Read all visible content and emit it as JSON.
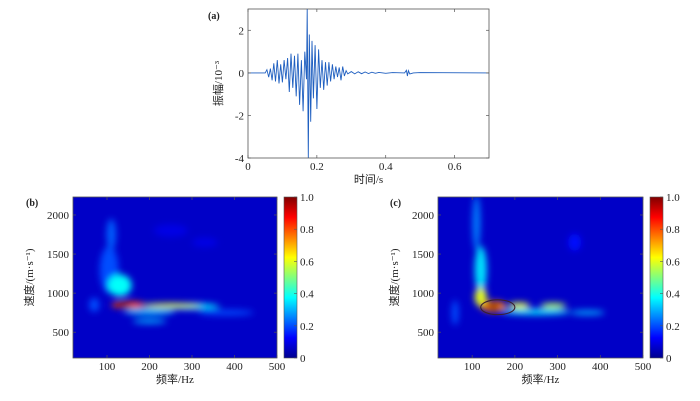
{
  "chart_data": [
    {
      "id": "a",
      "type": "line",
      "panel_label": "(a)",
      "xlabel": "时间/s",
      "ylabel": "振幅/10⁻³",
      "xlim": [
        0,
        0.7
      ],
      "ylim": [
        -4,
        3
      ],
      "xticks": [
        0,
        0.2,
        0.4,
        0.6
      ],
      "xtick_labels": [
        "0",
        "0.2",
        "0.4",
        "0.6"
      ],
      "yticks": [
        -4,
        -2,
        0,
        2
      ],
      "ytick_labels": [
        "-4",
        "-2",
        "0",
        "2"
      ],
      "color": "#1f5fc0",
      "x": [
        0,
        0.05,
        0.055,
        0.06,
        0.065,
        0.07,
        0.075,
        0.08,
        0.085,
        0.09,
        0.095,
        0.1,
        0.105,
        0.11,
        0.115,
        0.12,
        0.125,
        0.13,
        0.135,
        0.14,
        0.145,
        0.15,
        0.155,
        0.16,
        0.165,
        0.17,
        0.172,
        0.175,
        0.178,
        0.182,
        0.186,
        0.19,
        0.195,
        0.2,
        0.205,
        0.21,
        0.215,
        0.22,
        0.225,
        0.23,
        0.235,
        0.24,
        0.245,
        0.25,
        0.255,
        0.26,
        0.265,
        0.27,
        0.275,
        0.28,
        0.285,
        0.29,
        0.3,
        0.31,
        0.32,
        0.33,
        0.34,
        0.35,
        0.36,
        0.37,
        0.38,
        0.4,
        0.42,
        0.455,
        0.46,
        0.463,
        0.466,
        0.47,
        0.48,
        0.5,
        0.7
      ],
      "y": [
        0,
        0,
        0.15,
        -0.2,
        0.2,
        -0.35,
        0.45,
        -0.4,
        0.6,
        -0.5,
        0.4,
        -0.45,
        0.6,
        -0.3,
        0.7,
        -0.9,
        0.9,
        -0.7,
        0.8,
        -1.1,
        0.9,
        -1.5,
        0.6,
        -1.8,
        1.0,
        -0.3,
        3.0,
        -4.0,
        1.8,
        -2.3,
        1.5,
        -1.2,
        1.3,
        -1.7,
        1.1,
        -0.7,
        0.6,
        -0.8,
        0.5,
        -0.6,
        0.5,
        -0.4,
        0.4,
        -0.3,
        0.3,
        -0.2,
        0.25,
        -0.35,
        0.3,
        -0.15,
        0.1,
        -0.05,
        0.06,
        -0.05,
        0.05,
        -0.04,
        0.04,
        -0.03,
        0.03,
        -0.02,
        0.02,
        -0.02,
        0.01,
        0,
        0.12,
        -0.15,
        0.1,
        -0.05,
        0,
        0.01,
        0
      ]
    },
    {
      "id": "b",
      "type": "heatmap",
      "panel_label": "(b)",
      "xlabel": "频率/Hz",
      "ylabel": "速度/(m·s⁻¹)",
      "xlim": [
        20,
        500
      ],
      "ylim": [
        170,
        2230
      ],
      "xticks": [
        100,
        200,
        300,
        400,
        500
      ],
      "xtick_labels": [
        "100",
        "200",
        "300",
        "400",
        "500"
      ],
      "yticks": [
        500,
        1000,
        1500,
        2000
      ],
      "ytick_labels": [
        "500",
        "1000",
        "1500",
        "2000"
      ],
      "colorbar": {
        "range": [
          0,
          1
        ],
        "ticks": [
          0,
          0.2,
          0.4,
          0.6,
          0.8,
          1.0
        ],
        "tick_labels": [
          "0",
          "0.2",
          "0.4",
          "0.6",
          "0.8",
          "1.0"
        ]
      },
      "background_value": 0.07,
      "features": [
        {
          "f": 250,
          "v": 1800,
          "wf": 40,
          "wv": 80,
          "value": 0.1
        },
        {
          "f": 330,
          "v": 1650,
          "wf": 30,
          "wv": 60,
          "value": 0.1
        },
        {
          "f": 110,
          "v": 1750,
          "wf": 11,
          "wv": 200,
          "value": 0.22
        },
        {
          "f": 105,
          "v": 1300,
          "wf": 22,
          "wv": 300,
          "value": 0.2
        },
        {
          "f": 70,
          "v": 850,
          "wf": 12,
          "wv": 90,
          "value": 0.2
        },
        {
          "f": 380,
          "v": 750,
          "wf": 65,
          "wv": 35,
          "value": 0.2
        },
        {
          "f": 200,
          "v": 640,
          "wf": 40,
          "wv": 30,
          "value": 0.3
        },
        {
          "f": 200,
          "v": 765,
          "wf": 60,
          "wv": 40,
          "value": 0.32
        },
        {
          "f": 300,
          "v": 830,
          "wf": 65,
          "wv": 40,
          "value": 0.35
        },
        {
          "f": 130,
          "v": 1100,
          "wf": 28,
          "wv": 140,
          "value": 0.38
        },
        {
          "f": 250,
          "v": 842,
          "wf": 70,
          "wv": 30,
          "value": 0.6
        },
        {
          "f": 150,
          "v": 850,
          "wf": 40,
          "wv": 45,
          "value": 0.8
        },
        {
          "f": 140,
          "v": 845,
          "wf": 18,
          "wv": 30,
          "value": 1.0
        }
      ]
    },
    {
      "id": "c",
      "type": "heatmap",
      "panel_label": "(c)",
      "xlabel": "频率/Hz",
      "ylabel": "速度/(m·s⁻¹)",
      "xlim": [
        20,
        500
      ],
      "ylim": [
        170,
        2230
      ],
      "xticks": [
        100,
        200,
        300,
        400,
        500
      ],
      "xtick_labels": [
        "100",
        "200",
        "300",
        "400",
        "500"
      ],
      "yticks": [
        500,
        1000,
        1500,
        2000
      ],
      "ytick_labels": [
        "500",
        "1000",
        "1500",
        "2000"
      ],
      "colorbar": {
        "range": [
          0,
          1
        ],
        "ticks": [
          0,
          0.2,
          0.4,
          0.6,
          0.8,
          1.0
        ],
        "tick_labels": [
          "0",
          "0.2",
          "0.4",
          "0.6",
          "0.8",
          "1.0"
        ]
      },
      "background_value": 0.07,
      "features": [
        {
          "f": 340,
          "v": 1650,
          "wf": 15,
          "wv": 110,
          "value": 0.14
        },
        {
          "f": 60,
          "v": 750,
          "wf": 8,
          "wv": 160,
          "value": 0.2
        },
        {
          "f": 110,
          "v": 1900,
          "wf": 9,
          "wv": 350,
          "value": 0.25
        },
        {
          "f": 370,
          "v": 750,
          "wf": 40,
          "wv": 30,
          "value": 0.3
        },
        {
          "f": 250,
          "v": 760,
          "wf": 80,
          "wv": 40,
          "value": 0.35
        },
        {
          "f": 120,
          "v": 1300,
          "wf": 14,
          "wv": 300,
          "value": 0.35
        },
        {
          "f": 290,
          "v": 840,
          "wf": 30,
          "wv": 35,
          "value": 0.55
        },
        {
          "f": 210,
          "v": 840,
          "wf": 25,
          "wv": 40,
          "value": 0.6
        },
        {
          "f": 120,
          "v": 950,
          "wf": 14,
          "wv": 120,
          "value": 0.6
        },
        {
          "f": 150,
          "v": 830,
          "wf": 30,
          "wv": 70,
          "value": 0.75
        },
        {
          "f": 150,
          "v": 830,
          "wf": 14,
          "wv": 40,
          "value": 1.0
        }
      ],
      "annotation": {
        "shape": "ellipse",
        "f": 160,
        "v": 820,
        "wf": 40,
        "wv": 190,
        "color": "#3a2030"
      }
    }
  ]
}
